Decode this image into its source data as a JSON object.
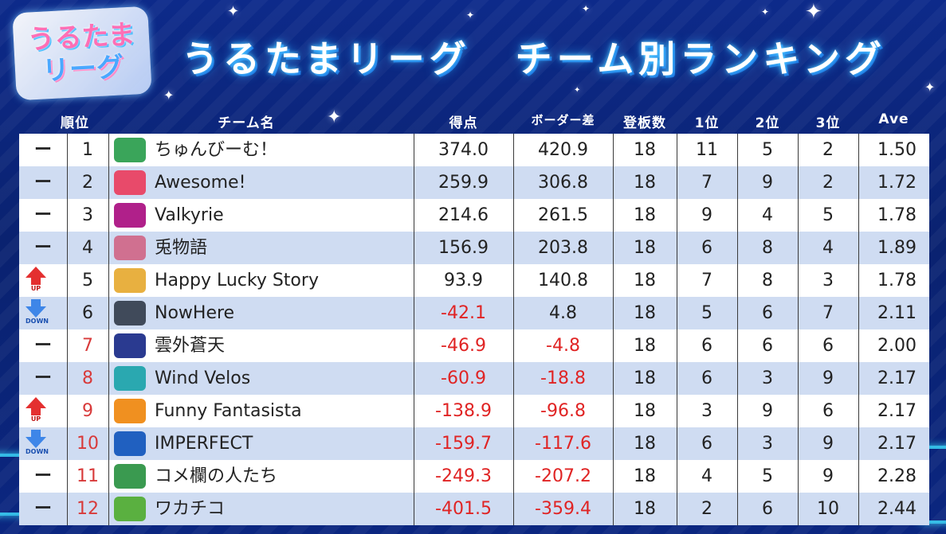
{
  "logo": {
    "line1": "うるたま",
    "line2": "リーグ"
  },
  "title": {
    "part1": "うるたまリーグ",
    "part2": "チーム別ランキング"
  },
  "headers": {
    "rank": "順位",
    "team": "チーム名",
    "points": "得点",
    "border_diff": "ボーダー差",
    "games": "登板数",
    "first": "1位",
    "second": "2位",
    "third": "3位",
    "ave": "Ave"
  },
  "trend_labels": {
    "up": "UP",
    "down": "DOWN",
    "same": "ー"
  },
  "colors": {
    "negative": "#e02424",
    "rank_below_border": "#d83a3a",
    "up": "#e43030",
    "down": "#3e86e8"
  },
  "rows": [
    {
      "trend": "same",
      "rank": "1",
      "icon": "chunbeam-logo",
      "icon_color": "#3aa55a",
      "team": "ちゅんびーむ！",
      "points": "374.0",
      "border_diff": "420.9",
      "games": "18",
      "first": "11",
      "second": "5",
      "third": "2",
      "ave": "1.50"
    },
    {
      "trend": "same",
      "rank": "2",
      "icon": "awesome-logo",
      "icon_color": "#e84a6a",
      "team": "Awesome!",
      "points": "259.9",
      "border_diff": "306.8",
      "games": "18",
      "first": "7",
      "second": "9",
      "third": "2",
      "ave": "1.72"
    },
    {
      "trend": "same",
      "rank": "3",
      "icon": "valkyrie-logo",
      "icon_color": "#b0208a",
      "team": "Valkyrie",
      "points": "214.6",
      "border_diff": "261.5",
      "games": "18",
      "first": "9",
      "second": "4",
      "third": "5",
      "ave": "1.78"
    },
    {
      "trend": "same",
      "rank": "4",
      "icon": "usagi-logo",
      "icon_color": "#d07090",
      "team": "兎物語",
      "points": "156.9",
      "border_diff": "203.8",
      "games": "18",
      "first": "6",
      "second": "8",
      "third": "4",
      "ave": "1.89"
    },
    {
      "trend": "up",
      "rank": "5",
      "icon": "happy-lucky-logo",
      "icon_color": "#e8b040",
      "team": "Happy Lucky Story",
      "points": "93.9",
      "border_diff": "140.8",
      "games": "18",
      "first": "7",
      "second": "8",
      "third": "3",
      "ave": "1.78"
    },
    {
      "trend": "down",
      "rank": "6",
      "icon": "nowhere-logo",
      "icon_color": "#404a5a",
      "team": "NowHere",
      "points": "-42.1",
      "border_diff": "4.8",
      "games": "18",
      "first": "5",
      "second": "6",
      "third": "7",
      "ave": "2.11"
    },
    {
      "trend": "same",
      "rank": "7",
      "icon": "ungai-logo",
      "icon_color": "#2a3a90",
      "team": "雲外蒼天",
      "points": "-46.9",
      "border_diff": "-4.8",
      "games": "18",
      "first": "6",
      "second": "6",
      "third": "6",
      "ave": "2.00"
    },
    {
      "trend": "same",
      "rank": "8",
      "icon": "wind-velos-logo",
      "icon_color": "#2aa8b0",
      "team": "Wind Velos",
      "points": "-60.9",
      "border_diff": "-18.8",
      "games": "18",
      "first": "6",
      "second": "3",
      "third": "9",
      "ave": "2.17"
    },
    {
      "trend": "up",
      "rank": "9",
      "icon": "funny-fantasista-logo",
      "icon_color": "#f09020",
      "team": "Funny Fantasista",
      "points": "-138.9",
      "border_diff": "-96.8",
      "games": "18",
      "first": "3",
      "second": "9",
      "third": "6",
      "ave": "2.17"
    },
    {
      "trend": "down",
      "rank": "10",
      "icon": "imperfect-logo",
      "icon_color": "#2060c0",
      "team": "IMPERFECT",
      "points": "-159.7",
      "border_diff": "-117.6",
      "games": "18",
      "first": "6",
      "second": "3",
      "third": "9",
      "ave": "2.17"
    },
    {
      "trend": "same",
      "rank": "11",
      "icon": "comerun-logo",
      "icon_color": "#3a9a50",
      "team": "コメ欄の人たち",
      "points": "-249.3",
      "border_diff": "-207.2",
      "games": "18",
      "first": "4",
      "second": "5",
      "third": "9",
      "ave": "2.28"
    },
    {
      "trend": "same",
      "rank": "12",
      "icon": "wakachiko-logo",
      "icon_color": "#5ab040",
      "team": "ワカチコ",
      "points": "-401.5",
      "border_diff": "-359.4",
      "games": "18",
      "first": "2",
      "second": "6",
      "third": "10",
      "ave": "2.44"
    }
  ]
}
